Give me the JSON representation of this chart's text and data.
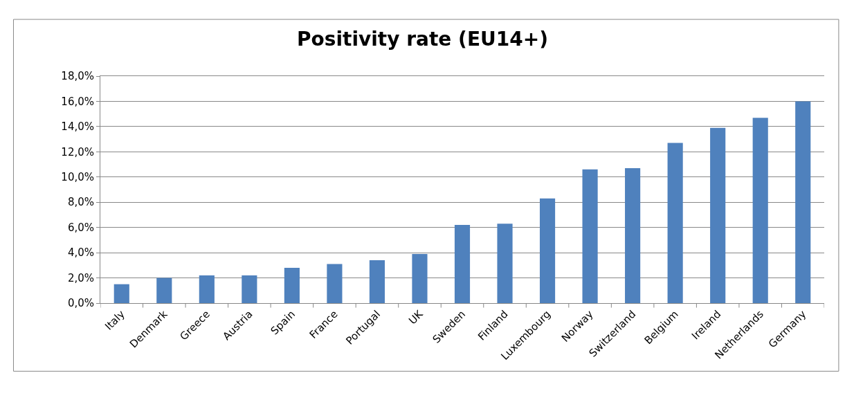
{
  "chart_data": {
    "type": "bar",
    "title": "Positivity rate (EU14+)",
    "categories": [
      "Italy",
      "Denmark",
      "Greece",
      "Austria",
      "Spain",
      "France",
      "Portugal",
      "UK",
      "Sweden",
      "Finland",
      "Luxembourg",
      "Norway",
      "Switzerland",
      "Belgium",
      "Ireland",
      "Netherlands",
      "Germany"
    ],
    "values": [
      1.5,
      2.0,
      2.2,
      2.2,
      2.8,
      3.1,
      3.4,
      3.9,
      6.2,
      6.3,
      8.3,
      10.6,
      10.7,
      12.7,
      13.9,
      14.7,
      16.0
    ],
    "color": "#4f81bd",
    "ylim": [
      0,
      18
    ],
    "yticks": [
      {
        "value": 0,
        "label": "0,0%"
      },
      {
        "value": 2,
        "label": "2,0%"
      },
      {
        "value": 4,
        "label": "4,0%"
      },
      {
        "value": 6,
        "label": "6,0%"
      },
      {
        "value": 8,
        "label": "8,0%"
      },
      {
        "value": 10,
        "label": "10,0%"
      },
      {
        "value": 12,
        "label": "12,0%"
      },
      {
        "value": 14,
        "label": "14,0%"
      },
      {
        "value": 16,
        "label": "16,0%"
      },
      {
        "value": 18,
        "label": "18,0%"
      }
    ],
    "grid": "y"
  }
}
